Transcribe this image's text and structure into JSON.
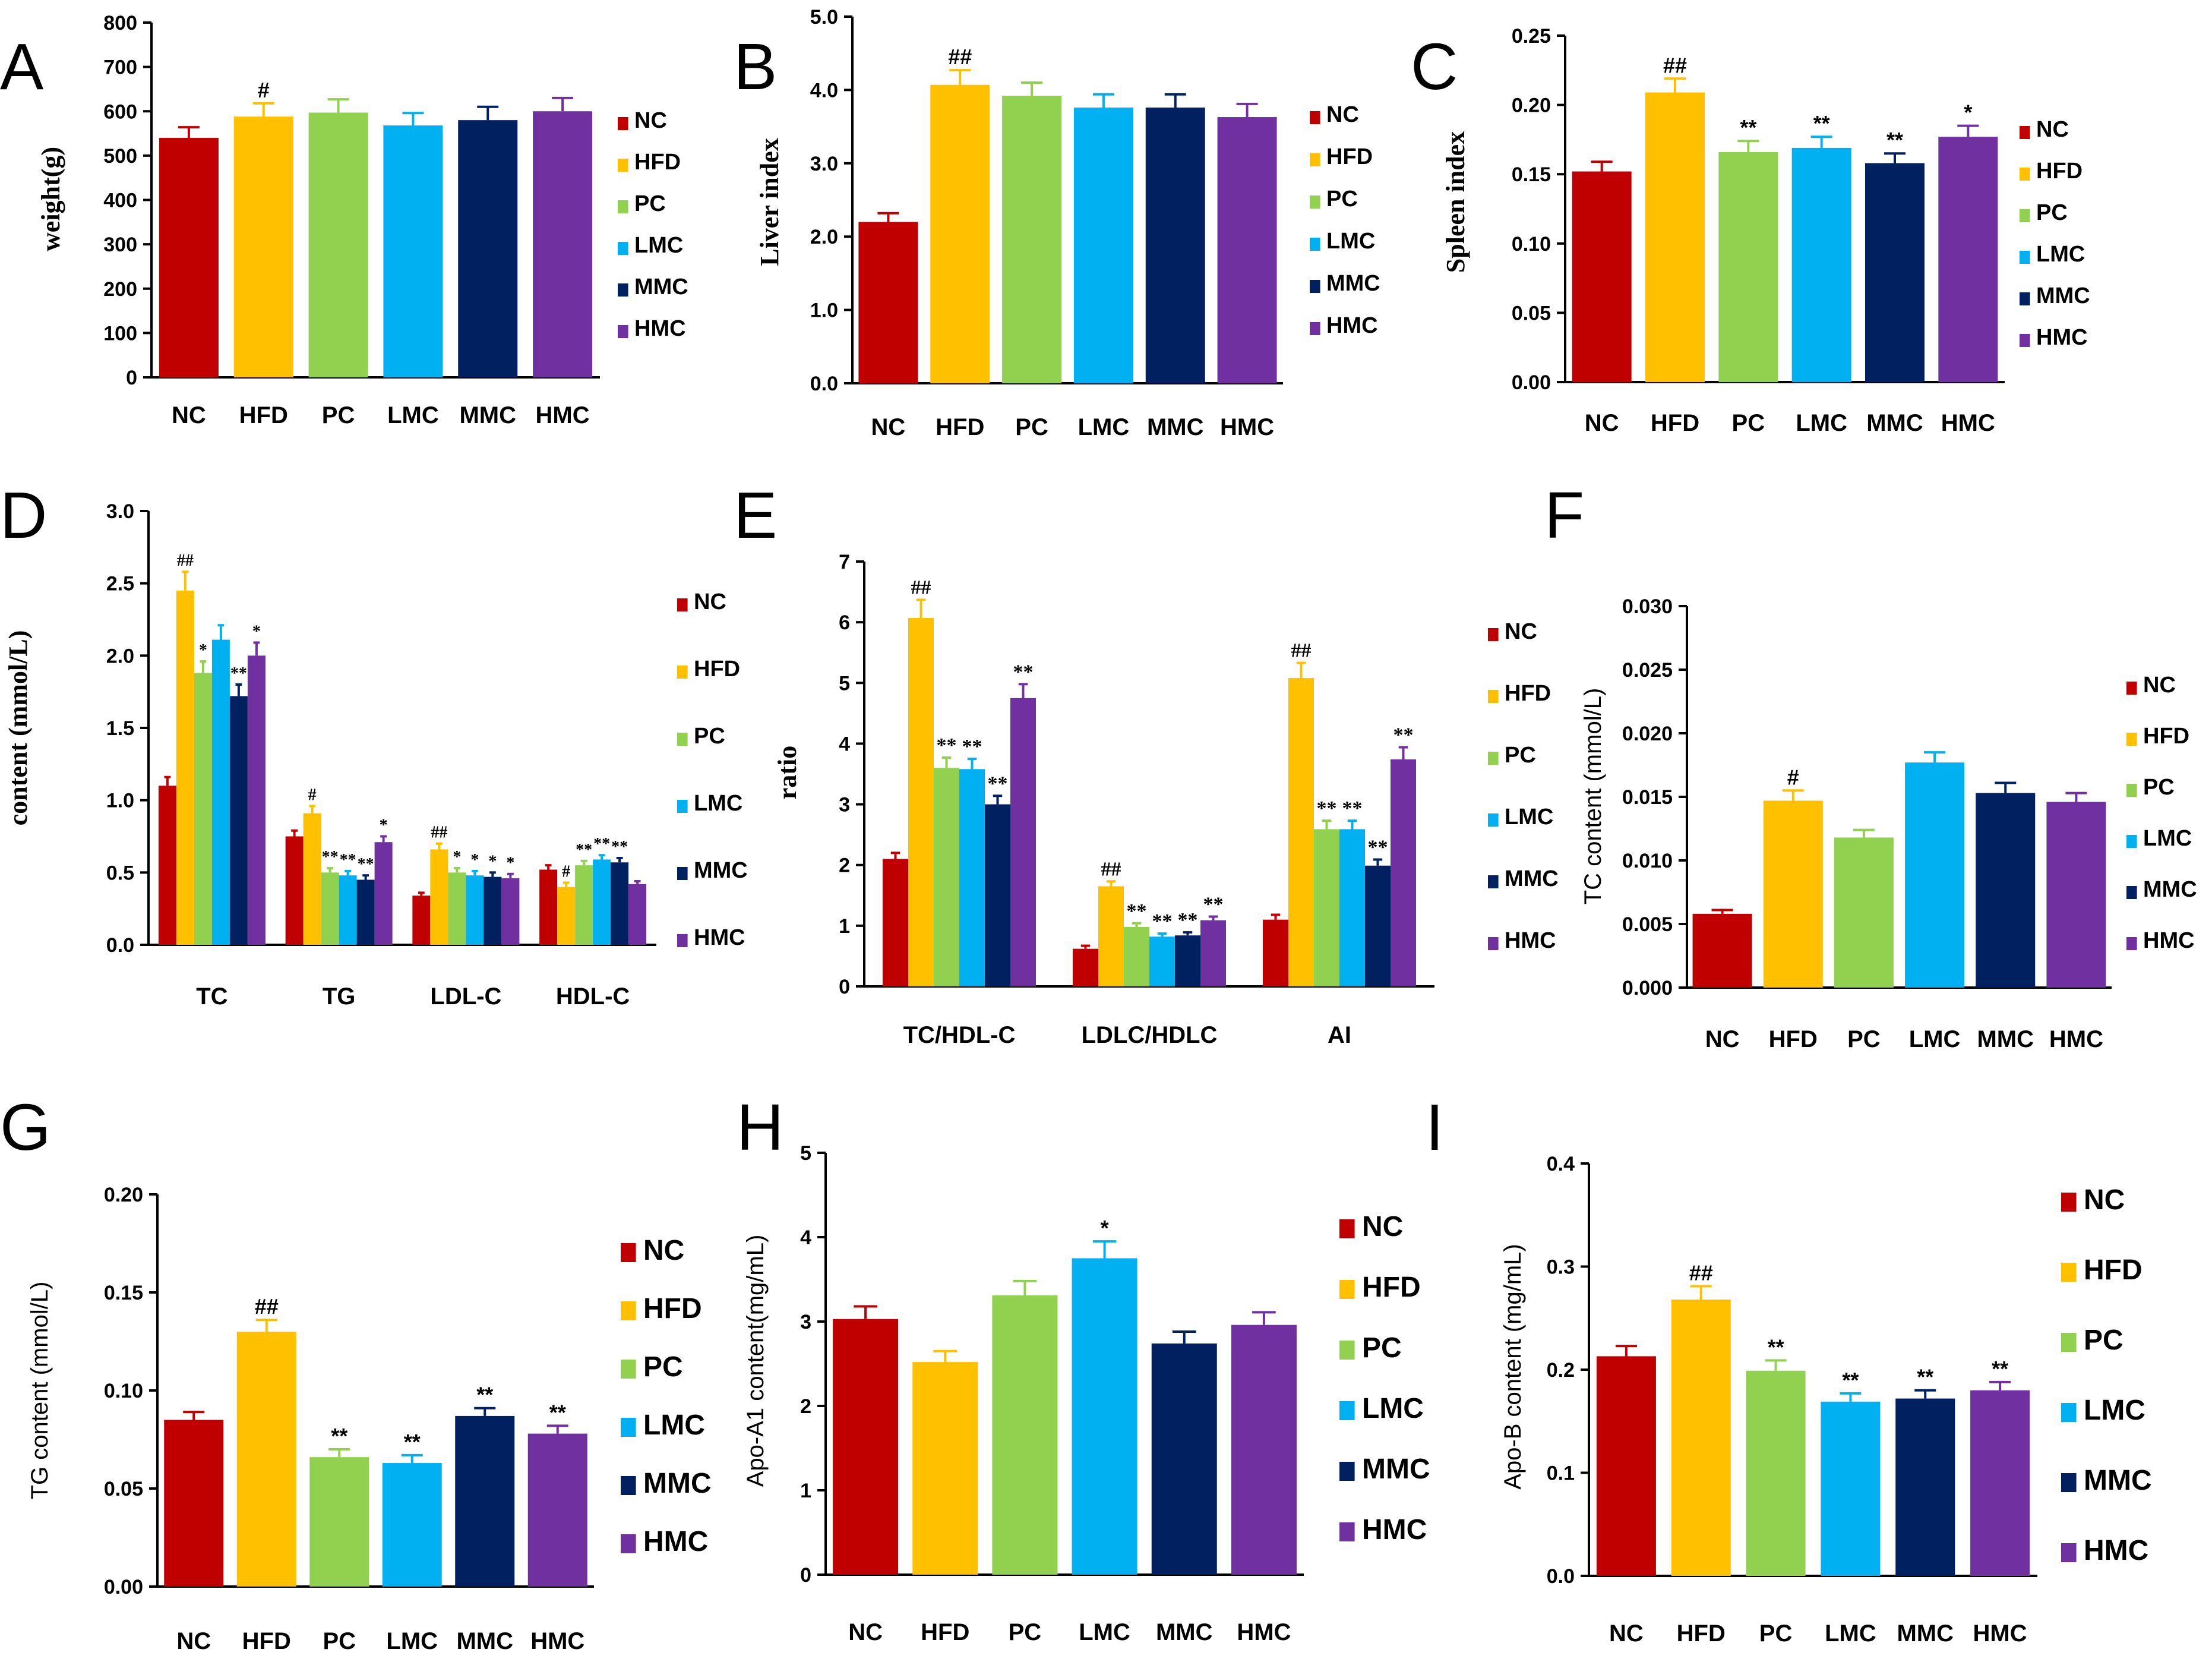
{
  "groups": [
    "NC",
    "HFD",
    "PC",
    "LMC",
    "MMC",
    "HMC"
  ],
  "colors": {
    "NC": "#c00000",
    "HFD": "#ffc000",
    "PC": "#92d050",
    "LMC": "#00b0f0",
    "MMC": "#002060",
    "HMC": "#7030a0"
  },
  "chart_data": [
    {
      "panel": "A",
      "type": "bar",
      "title": "",
      "xlabel": "",
      "ylabel": "weight(g)",
      "ylim": [
        0,
        800
      ],
      "yticks": [
        "0",
        "100",
        "200",
        "300",
        "400",
        "500",
        "600",
        "700",
        "800"
      ],
      "categories": [
        "NC",
        "HFD",
        "PC",
        "LMC",
        "MMC",
        "HMC"
      ],
      "values": [
        540,
        588,
        597,
        568,
        580,
        600
      ],
      "errors": [
        24,
        30,
        30,
        28,
        30,
        30
      ],
      "annotations": [
        "",
        "#",
        "",
        "",
        "",
        ""
      ],
      "legend": [
        "NC",
        "HFD",
        "PC",
        "LMC",
        "MMC",
        "HMC"
      ]
    },
    {
      "panel": "B",
      "type": "bar",
      "title": "",
      "xlabel": "",
      "ylabel": "Liver  index",
      "ylim": [
        0,
        5
      ],
      "yticks": [
        "0.0",
        "1.0",
        "2.0",
        "3.0",
        "4.0",
        "5.0"
      ],
      "categories": [
        "NC",
        "HFD",
        "PC",
        "LMC",
        "MMC",
        "HMC"
      ],
      "values": [
        2.2,
        4.07,
        3.92,
        3.76,
        3.76,
        3.63
      ],
      "errors": [
        0.12,
        0.2,
        0.18,
        0.18,
        0.18,
        0.18
      ],
      "annotations": [
        "",
        "##",
        "",
        "",
        "",
        ""
      ],
      "legend": [
        "NC",
        "HFD",
        "PC",
        "LMC",
        "MMC",
        "HMC"
      ]
    },
    {
      "panel": "C",
      "type": "bar",
      "title": "",
      "xlabel": "",
      "ylabel": "Spleen index",
      "ylim": [
        0,
        0.25
      ],
      "yticks": [
        "0.00",
        "0.05",
        "0.10",
        "0.15",
        "0.20",
        "0.25"
      ],
      "categories": [
        "NC",
        "HFD",
        "PC",
        "LMC",
        "MMC",
        "HMC"
      ],
      "values": [
        0.152,
        0.209,
        0.166,
        0.169,
        0.158,
        0.177
      ],
      "errors": [
        0.007,
        0.01,
        0.008,
        0.008,
        0.007,
        0.008
      ],
      "annotations": [
        "",
        "##",
        "**",
        "**",
        "**",
        "*"
      ],
      "legend": [
        "NC",
        "HFD",
        "PC",
        "LMC",
        "MMC",
        "HMC"
      ]
    },
    {
      "panel": "D",
      "type": "bar",
      "title": "",
      "xlabel": "",
      "ylabel": "content (mmol/L)",
      "ylim": [
        0,
        3
      ],
      "yticks": [
        "0.0",
        "0.5",
        "1.0",
        "1.5",
        "2.0",
        "2.5",
        "3.0"
      ],
      "categories": [
        "TC",
        "TG",
        "LDL-C",
        "HDL-C"
      ],
      "series": [
        {
          "name": "NC",
          "values": [
            1.1,
            0.75,
            0.34,
            0.52
          ],
          "errors": [
            0.06,
            0.04,
            0.02,
            0.03
          ],
          "annotations": [
            "",
            "",
            "",
            ""
          ]
        },
        {
          "name": "HFD",
          "values": [
            2.45,
            0.91,
            0.66,
            0.4
          ],
          "errors": [
            0.13,
            0.05,
            0.04,
            0.03
          ],
          "annotations": [
            "##",
            "#",
            "##",
            "#"
          ]
        },
        {
          "name": "PC",
          "values": [
            1.88,
            0.5,
            0.5,
            0.55
          ],
          "errors": [
            0.08,
            0.03,
            0.03,
            0.03
          ],
          "annotations": [
            "*",
            "**",
            "*",
            "**"
          ]
        },
        {
          "name": "LMC",
          "values": [
            2.11,
            0.48,
            0.48,
            0.59
          ],
          "errors": [
            0.1,
            0.03,
            0.03,
            0.03
          ],
          "annotations": [
            "",
            "**",
            "*",
            "**"
          ]
        },
        {
          "name": "MMC",
          "values": [
            1.72,
            0.45,
            0.47,
            0.57
          ],
          "errors": [
            0.08,
            0.03,
            0.03,
            0.03
          ],
          "annotations": [
            "**",
            "**",
            "*",
            "**"
          ]
        },
        {
          "name": "HMC",
          "values": [
            2.0,
            0.71,
            0.46,
            0.42
          ],
          "errors": [
            0.09,
            0.04,
            0.03,
            0.02
          ],
          "annotations": [
            "*",
            "*",
            "*",
            ""
          ]
        }
      ],
      "legend": [
        "NC",
        "HFD",
        "PC",
        "LMC",
        "MMC",
        "HMC"
      ]
    },
    {
      "panel": "E",
      "type": "bar",
      "title": "",
      "xlabel": "",
      "ylabel": "ratio",
      "ylim": [
        0,
        7
      ],
      "yticks": [
        "0",
        "1",
        "2",
        "3",
        "4",
        "5",
        "6",
        "7"
      ],
      "categories": [
        "TC/HDL-C",
        "LDLC/HDLC",
        "AI"
      ],
      "series": [
        {
          "name": "NC",
          "values": [
            2.1,
            0.62,
            1.1
          ],
          "errors": [
            0.1,
            0.05,
            0.08
          ],
          "annotations": [
            "",
            "",
            ""
          ]
        },
        {
          "name": "HFD",
          "values": [
            6.07,
            1.65,
            5.08
          ],
          "errors": [
            0.3,
            0.08,
            0.25
          ],
          "annotations": [
            "##",
            "##",
            "##"
          ]
        },
        {
          "name": "PC",
          "values": [
            3.6,
            0.98,
            2.59
          ],
          "errors": [
            0.17,
            0.06,
            0.14
          ],
          "annotations": [
            "**",
            "**",
            "**"
          ]
        },
        {
          "name": "LMC",
          "values": [
            3.58,
            0.82,
            2.59
          ],
          "errors": [
            0.17,
            0.05,
            0.14
          ],
          "annotations": [
            "**",
            "**",
            "**"
          ]
        },
        {
          "name": "MMC",
          "values": [
            3.0,
            0.84,
            1.99
          ],
          "errors": [
            0.14,
            0.05,
            0.1
          ],
          "annotations": [
            "**",
            "**",
            "**"
          ]
        },
        {
          "name": "HMC",
          "values": [
            4.75,
            1.09,
            3.74
          ],
          "errors": [
            0.23,
            0.06,
            0.2
          ],
          "annotations": [
            "**",
            "**",
            "**"
          ]
        }
      ],
      "legend": [
        "NC",
        "HFD",
        "PC",
        "LMC",
        "MMC",
        "HMC"
      ]
    },
    {
      "panel": "F",
      "type": "bar",
      "title": "",
      "xlabel": "",
      "ylabel": "TC  content (mmol/L)",
      "ylim": [
        0,
        0.03
      ],
      "yticks": [
        "0.000",
        "0.005",
        "0.010",
        "0.015",
        "0.020",
        "0.025",
        "0.030"
      ],
      "categories": [
        "NC",
        "HFD",
        "PC",
        "LMC",
        "MMC",
        "HMC"
      ],
      "values": [
        0.0058,
        0.0147,
        0.0118,
        0.0177,
        0.0153,
        0.0146
      ],
      "errors": [
        0.0003,
        0.0008,
        0.0006,
        0.0008,
        0.0008,
        0.0007
      ],
      "annotations": [
        "",
        "#",
        "",
        "",
        "",
        ""
      ],
      "legend": [
        "NC",
        "HFD",
        "PC",
        "LMC",
        "MMC",
        "HMC"
      ]
    },
    {
      "panel": "G",
      "type": "bar",
      "title": "",
      "xlabel": "",
      "ylabel": "TG content (mmol/L)",
      "ylim": [
        0,
        0.2
      ],
      "yticks": [
        "0.00",
        "0.05",
        "0.10",
        "0.15",
        "0.20"
      ],
      "categories": [
        "NC",
        "HFD",
        "PC",
        "LMC",
        "MMC",
        "HMC"
      ],
      "values": [
        0.085,
        0.13,
        0.066,
        0.063,
        0.087,
        0.078
      ],
      "errors": [
        0.004,
        0.006,
        0.004,
        0.004,
        0.004,
        0.004
      ],
      "annotations": [
        "",
        "##",
        "**",
        "**",
        "**",
        "**"
      ],
      "legend": [
        "NC",
        "HFD",
        "PC",
        "LMC",
        "MMC",
        "HMC"
      ]
    },
    {
      "panel": "H",
      "type": "bar",
      "title": "",
      "xlabel": "",
      "ylabel": "Apo-A1 content(mg/mL)",
      "ylim": [
        0,
        5
      ],
      "yticks": [
        "0",
        "1",
        "2",
        "3",
        "4",
        "5"
      ],
      "categories": [
        "NC",
        "HFD",
        "PC",
        "LMC",
        "MMC",
        "HMC"
      ],
      "values": [
        3.03,
        2.52,
        3.31,
        3.75,
        2.74,
        2.96
      ],
      "errors": [
        0.15,
        0.13,
        0.17,
        0.2,
        0.14,
        0.15
      ],
      "annotations": [
        "",
        "",
        "",
        "*",
        "",
        ""
      ],
      "legend": [
        "NC",
        "HFD",
        "PC",
        "LMC",
        "MMC",
        "HMC"
      ]
    },
    {
      "panel": "I",
      "type": "bar",
      "title": "",
      "xlabel": "",
      "ylabel": "Apo-B content (mg/mL)",
      "ylim": [
        0,
        0.4
      ],
      "yticks": [
        "0.0",
        "0.1",
        "0.2",
        "0.3",
        "0.4"
      ],
      "categories": [
        "NC",
        "HFD",
        "PC",
        "LMC",
        "MMC",
        "HMC"
      ],
      "values": [
        0.213,
        0.268,
        0.199,
        0.169,
        0.172,
        0.18
      ],
      "errors": [
        0.01,
        0.013,
        0.01,
        0.008,
        0.008,
        0.008
      ],
      "annotations": [
        "",
        "##",
        "**",
        "**",
        "**",
        "**"
      ],
      "legend": [
        "NC",
        "HFD",
        "PC",
        "LMC",
        "MMC",
        "HMC"
      ]
    }
  ]
}
